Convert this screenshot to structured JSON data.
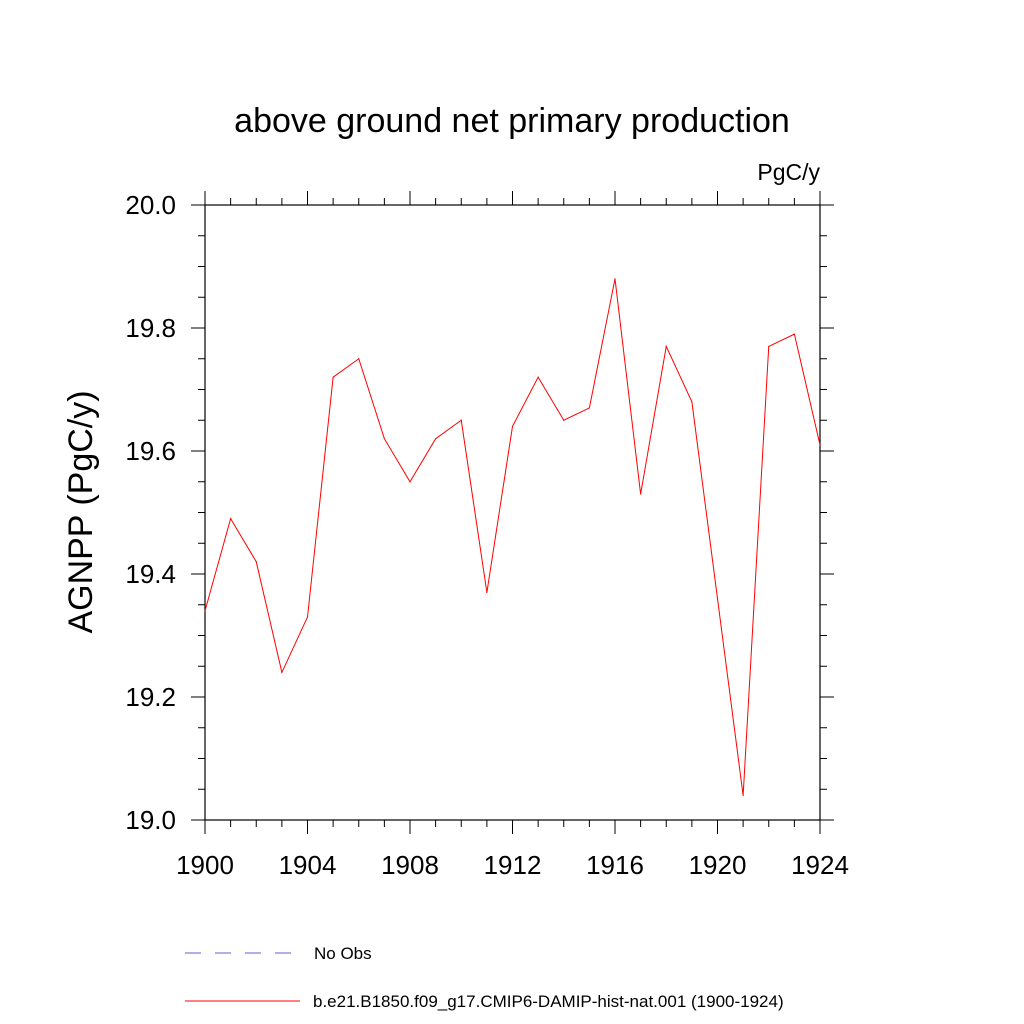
{
  "chart_data": {
    "type": "line",
    "title": "above ground net primary production",
    "units_label": "PgC/y",
    "ylabel": "AGNPP  (PgC/y)",
    "xlabel": "",
    "xlim": [
      1900,
      1924
    ],
    "ylim": [
      19.0,
      20.0
    ],
    "x_ticks": [
      1900,
      1904,
      1908,
      1912,
      1916,
      1920,
      1924
    ],
    "y_ticks": [
      "19.0",
      "19.2",
      "19.4",
      "19.6",
      "19.8",
      "20.0"
    ],
    "grid": false,
    "legend_position": "bottom",
    "x": [
      1900,
      1901,
      1902,
      1903,
      1904,
      1905,
      1906,
      1907,
      1908,
      1909,
      1910,
      1911,
      1912,
      1913,
      1914,
      1915,
      1916,
      1917,
      1918,
      1919,
      1920,
      1921,
      1922,
      1923,
      1924
    ],
    "series": [
      {
        "name": "b.e21.B1850.f09_g17.CMIP6-DAMIP-hist-nat.001 (1900-1924)",
        "color": "#ff0000",
        "style": "solid",
        "values": [
          19.34,
          19.49,
          19.42,
          19.24,
          19.33,
          19.72,
          19.75,
          19.62,
          19.55,
          19.62,
          19.65,
          19.37,
          19.64,
          19.72,
          19.65,
          19.67,
          19.88,
          19.53,
          19.77,
          19.68,
          19.36,
          19.04,
          19.77,
          19.79,
          19.61
        ]
      }
    ],
    "legend": [
      {
        "label": "No Obs",
        "color": "#6a5acd",
        "style": "dashed"
      },
      {
        "label": "b.e21.B1850.f09_g17.CMIP6-DAMIP-hist-nat.001 (1900-1924)",
        "color": "#ff0000",
        "style": "solid"
      }
    ]
  }
}
